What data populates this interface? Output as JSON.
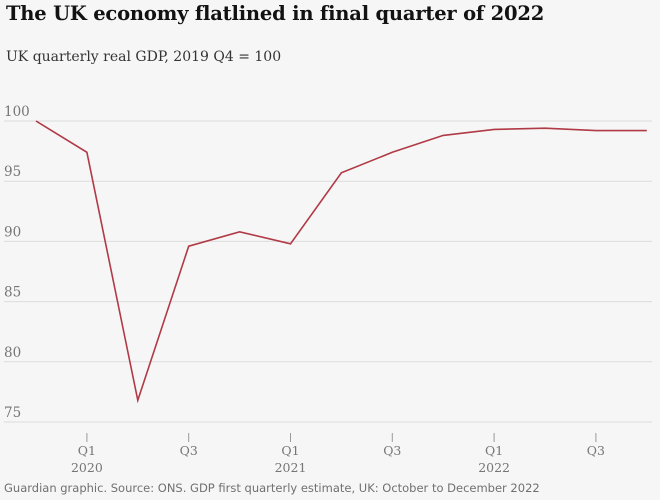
{
  "title": "The UK economy flatlined in final quarter of 2022",
  "subtitle": "UK quarterly real GDP, 2019 Q4 = 100",
  "footer": "Guardian graphic. Source: ONS. GDP first quarterly estimate, UK: October to December 2022",
  "colors": {
    "line": "#b03a46",
    "grid": "#dcdcdc",
    "tick_text": "#767676",
    "background": "#f6f6f6"
  },
  "chart_data": {
    "type": "line",
    "title": "The UK economy flatlined in final quarter of 2022",
    "subtitle": "UK quarterly real GDP, 2019 Q4 = 100",
    "xlabel": "",
    "ylabel": "",
    "ylim": [
      75,
      100
    ],
    "yticks": [
      75,
      80,
      85,
      90,
      95,
      100
    ],
    "grid": true,
    "x": [
      "2019 Q4",
      "2020 Q1",
      "2020 Q2",
      "2020 Q3",
      "2020 Q4",
      "2021 Q1",
      "2021 Q2",
      "2021 Q3",
      "2021 Q4",
      "2022 Q1",
      "2022 Q2",
      "2022 Q3",
      "2022 Q4"
    ],
    "xticks": [
      {
        "index": 1,
        "label": "Q1",
        "year": "2020"
      },
      {
        "index": 3,
        "label": "Q3",
        "year": ""
      },
      {
        "index": 5,
        "label": "Q1",
        "year": "2021"
      },
      {
        "index": 7,
        "label": "Q3",
        "year": ""
      },
      {
        "index": 9,
        "label": "Q1",
        "year": "2022"
      },
      {
        "index": 11,
        "label": "Q3",
        "year": ""
      }
    ],
    "series": [
      {
        "name": "",
        "values": [
          100,
          97.4,
          76.8,
          89.6,
          90.8,
          89.8,
          95.7,
          97.4,
          98.8,
          99.3,
          99.4,
          99.2,
          99.2
        ]
      }
    ]
  }
}
